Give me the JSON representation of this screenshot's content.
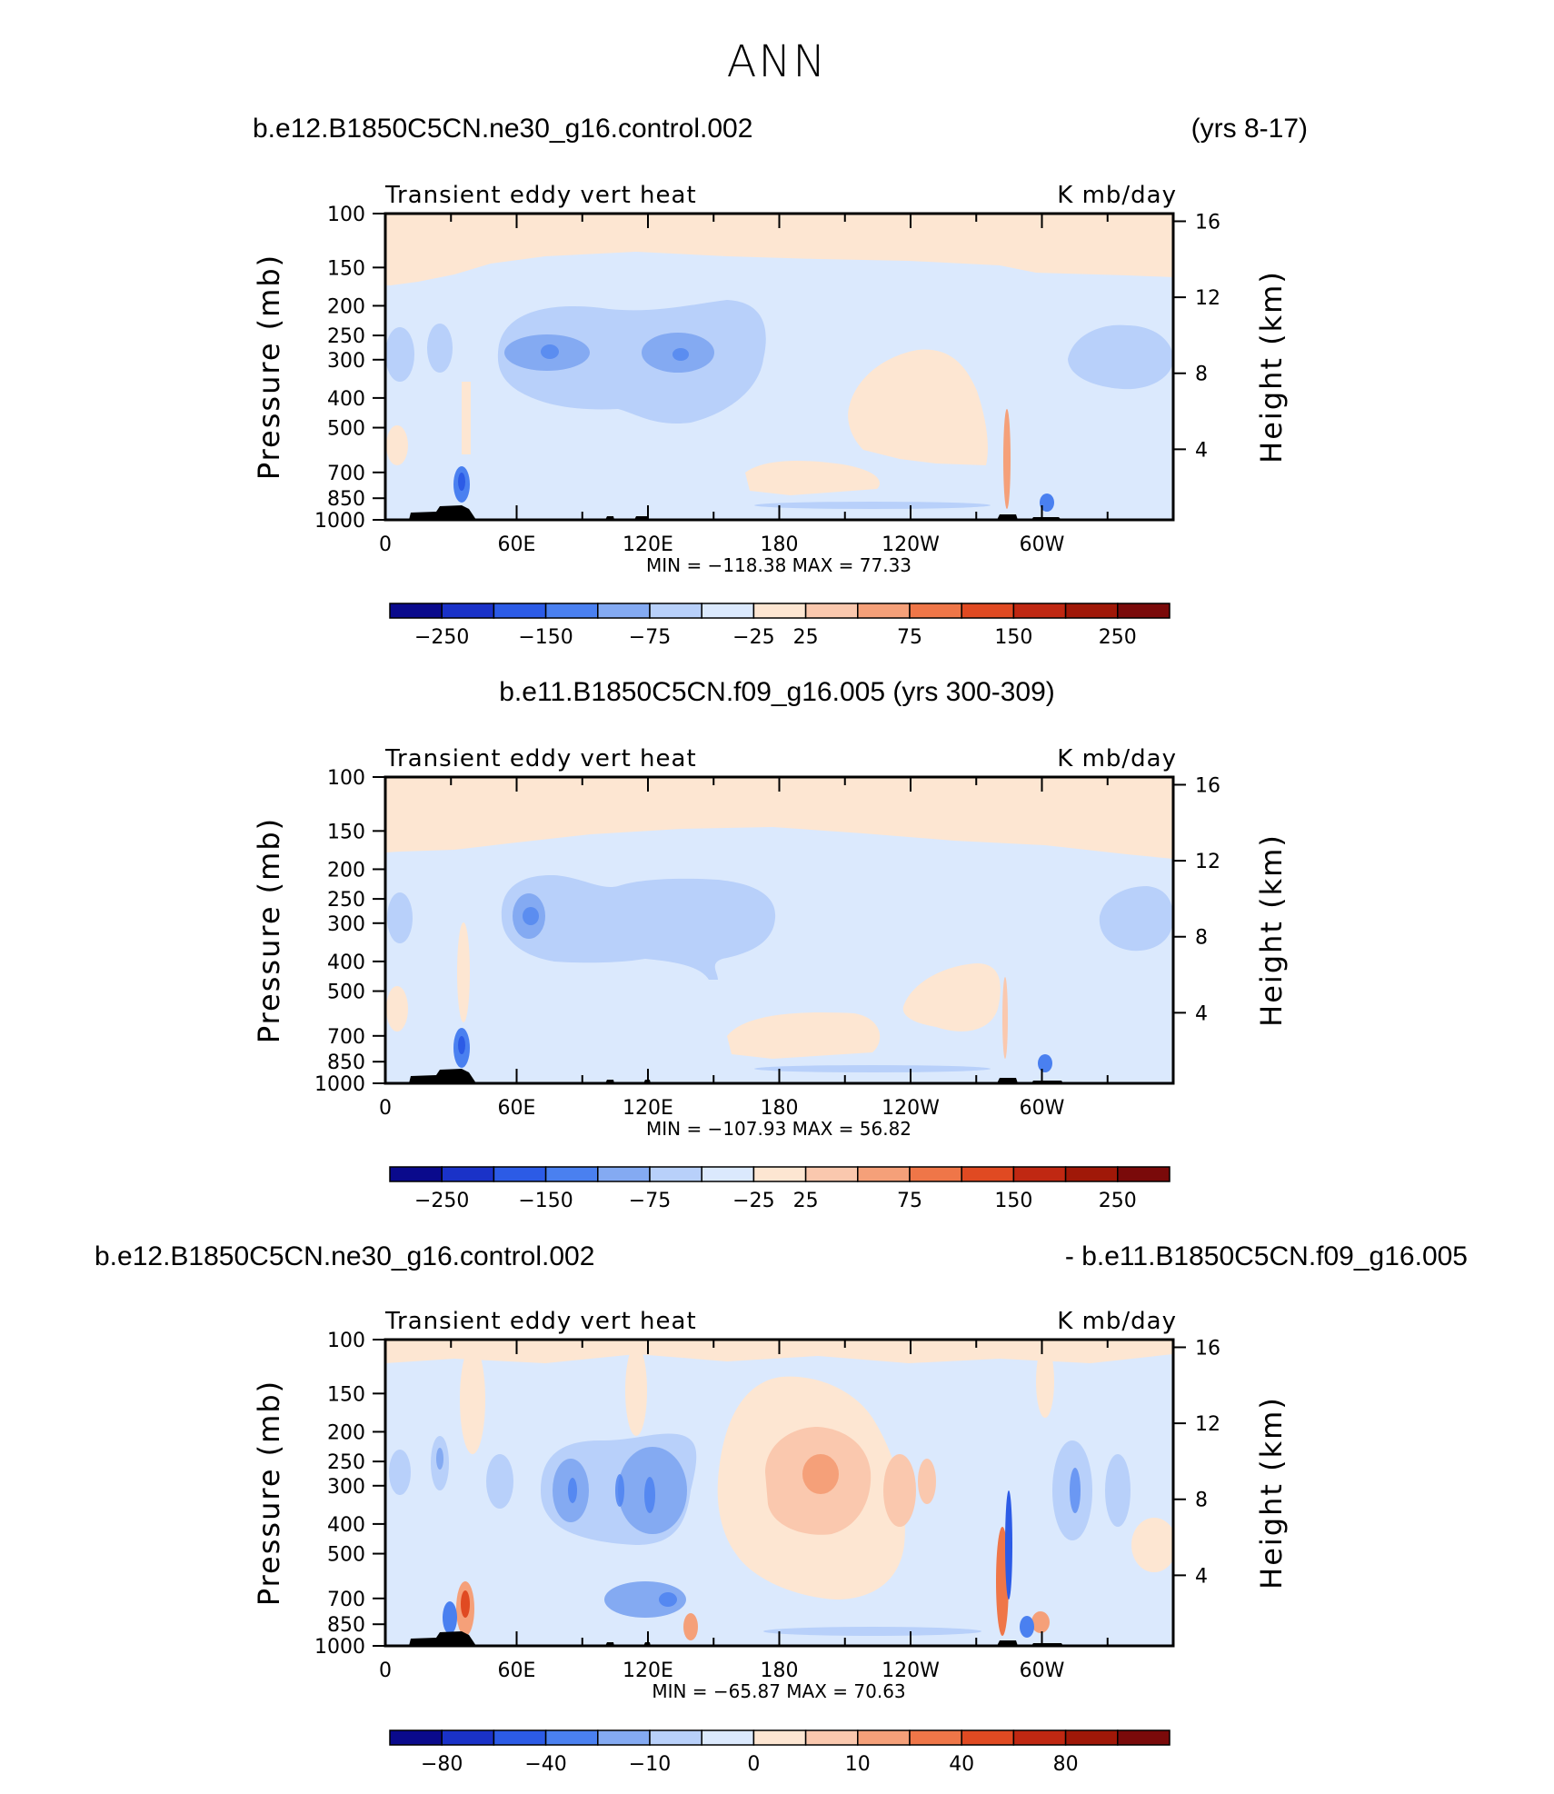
{
  "page_title": "ANN",
  "panels": [
    {
      "left_title": "b.e12.B1850C5CN.ne30_g16.control.002",
      "right_title": "(yrs 8-17)",
      "center_title": "",
      "variable_label": "Transient eddy vert heat",
      "units_label": "K mb/day",
      "stats_text": "MIN = −118.38   MAX =   77.33"
    },
    {
      "left_title": "",
      "right_title": "",
      "center_title": "b.e11.B1850C5CN.f09_g16.005 (yrs 300-309)",
      "variable_label": "Transient eddy vert heat",
      "units_label": "K mb/day",
      "stats_text": "MIN = −107.93   MAX =   56.82"
    },
    {
      "left_title": "b.e12.B1850C5CN.ne30_g16.control.002",
      "right_title": "- b.e11.B1850C5CN.f09_g16.005",
      "center_title": "",
      "variable_label": "Transient eddy vert heat",
      "units_label": "K mb/day",
      "stats_text": "MIN = −65.87   MAX =   70.63"
    }
  ],
  "chart_data": [
    {
      "type": "heatmap",
      "xlabel": "",
      "ylabel": "Pressure (mb)",
      "y2label": "Height (km)",
      "x_ticks": [
        "0",
        "60E",
        "120E",
        "180",
        "120W",
        "60W"
      ],
      "y_ticks": [
        "100",
        "150",
        "200",
        "250",
        "300",
        "400",
        "500",
        "700",
        "850",
        "1000"
      ],
      "y2_ticks": [
        "16",
        "12",
        "8",
        "4"
      ],
      "ylim": [
        1000,
        100
      ],
      "min": -118.38,
      "max": 77.33,
      "colorbar": {
        "levels": [
          "−250",
          "−150",
          "−75",
          "−25",
          "25",
          "75",
          "150",
          "250"
        ],
        "colors": [
          "#0a0a8c",
          "#1a32c8",
          "#2c5be6",
          "#4a80f0",
          "#84aaf2",
          "#b8d0fa",
          "#dbe9fd",
          "#fde6d2",
          "#fac8ae",
          "#f5a079",
          "#ef7648",
          "#e04a22",
          "#c02812",
          "#a01808",
          "#7a0a0a"
        ]
      }
    },
    {
      "type": "heatmap",
      "xlabel": "",
      "ylabel": "Pressure (mb)",
      "y2label": "Height (km)",
      "x_ticks": [
        "0",
        "60E",
        "120E",
        "180",
        "120W",
        "60W"
      ],
      "y_ticks": [
        "100",
        "150",
        "200",
        "250",
        "300",
        "400",
        "500",
        "700",
        "850",
        "1000"
      ],
      "y2_ticks": [
        "16",
        "12",
        "8",
        "4"
      ],
      "ylim": [
        1000,
        100
      ],
      "min": -107.93,
      "max": 56.82,
      "colorbar": {
        "levels": [
          "−250",
          "−150",
          "−75",
          "−25",
          "25",
          "75",
          "150",
          "250"
        ],
        "colors": [
          "#0a0a8c",
          "#1a32c8",
          "#2c5be6",
          "#4a80f0",
          "#84aaf2",
          "#b8d0fa",
          "#dbe9fd",
          "#fde6d2",
          "#fac8ae",
          "#f5a079",
          "#ef7648",
          "#e04a22",
          "#c02812",
          "#a01808",
          "#7a0a0a"
        ]
      }
    },
    {
      "type": "heatmap",
      "xlabel": "",
      "ylabel": "Pressure (mb)",
      "y2label": "Height (km)",
      "x_ticks": [
        "0",
        "60E",
        "120E",
        "180",
        "120W",
        "60W"
      ],
      "y_ticks": [
        "100",
        "150",
        "200",
        "250",
        "300",
        "400",
        "500",
        "700",
        "850",
        "1000"
      ],
      "y2_ticks": [
        "16",
        "12",
        "8",
        "4"
      ],
      "ylim": [
        1000,
        100
      ],
      "min": -65.87,
      "max": 70.63,
      "colorbar": {
        "levels": [
          "−80",
          "−40",
          "−10",
          "0",
          "10",
          "40",
          "80"
        ],
        "colors": [
          "#0a0a8c",
          "#1a32c8",
          "#2c5be6",
          "#4a80f0",
          "#84aaf2",
          "#b8d0fa",
          "#dbe9fd",
          "#fde6d2",
          "#fac8ae",
          "#f5a079",
          "#ef7648",
          "#e04a22",
          "#c02812",
          "#a01808",
          "#7a0a0a"
        ]
      }
    }
  ],
  "colors": {
    "stratosphere_positive": "#fde6d2",
    "light_negative": "#dbe9fd",
    "medium_negative": "#b8d0fa",
    "strong_negative": "#84aaf2",
    "stronger_negative": "#4a80f0",
    "light_positive": "#fde6d2",
    "medium_positive": "#fac8ae",
    "strong_positive": "#f5a079",
    "topography": "#000000"
  }
}
